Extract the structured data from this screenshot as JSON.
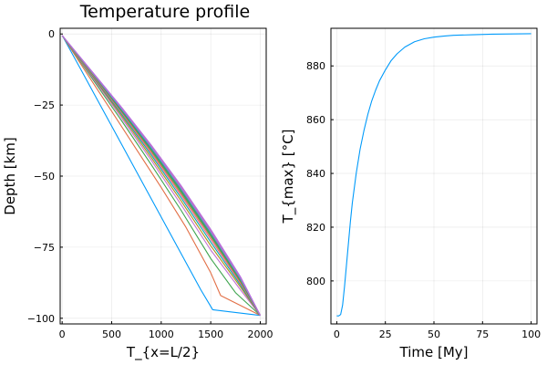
{
  "chart_data": [
    {
      "type": "line",
      "title": "Temperature profile",
      "xlabel": "T_{x=L/2}",
      "ylabel": "Depth [km]",
      "xlim": [
        -20,
        2060
      ],
      "ylim": [
        -102,
        2
      ],
      "xticks": [
        0,
        500,
        1000,
        1500,
        2000
      ],
      "xtick_labels": [
        "0",
        "500",
        "1000",
        "1500",
        "2000"
      ],
      "yticks": [
        0,
        -25,
        -50,
        -75,
        -100
      ],
      "ytick_labels": [
        "0",
        "−25",
        "−50",
        "−75",
        "−100"
      ],
      "grid": true,
      "legend": "none",
      "series": [
        {
          "color": "#009AFA",
          "x": [
            0,
            200,
            400,
            600,
            800,
            1000,
            1200,
            1400,
            1520,
            2000
          ],
          "y": [
            -0.5,
            -13.2,
            -26.0,
            -38.8,
            -51.6,
            -64.4,
            -77.2,
            -90.0,
            -97.0,
            -99.0
          ]
        },
        {
          "color": "#E26F46",
          "x": [
            0,
            250,
            500,
            750,
            1000,
            1250,
            1500,
            1600,
            2000
          ],
          "y": [
            -0.5,
            -13.9,
            -27.2,
            -40.6,
            -54.0,
            -68.0,
            -84.0,
            -92.0,
            -99.0
          ]
        },
        {
          "color": "#3EA44E",
          "x": [
            0,
            300,
            600,
            900,
            1200,
            1500,
            1750,
            2000
          ],
          "y": [
            -0.5,
            -15.5,
            -30.5,
            -46.0,
            -62.0,
            -79.0,
            -91.0,
            -99.0
          ]
        },
        {
          "color": "#C371D2",
          "x": [
            0,
            300,
            600,
            900,
            1200,
            1500,
            1800,
            2000
          ],
          "y": [
            -0.5,
            -15.0,
            -29.5,
            -44.5,
            -60.0,
            -76.0,
            -90.0,
            -99.0
          ]
        },
        {
          "color": "#AD8F19",
          "x": [
            0,
            300,
            600,
            900,
            1200,
            1500,
            1800,
            2000
          ],
          "y": [
            -0.5,
            -14.6,
            -28.8,
            -43.5,
            -58.7,
            -74.5,
            -89.0,
            -99.0
          ]
        },
        {
          "color": "#00AAAE",
          "x": [
            0,
            300,
            600,
            900,
            1200,
            1500,
            1800,
            2000
          ],
          "y": [
            -0.5,
            -14.3,
            -28.2,
            -42.6,
            -57.6,
            -73.2,
            -88.3,
            -99.0
          ]
        },
        {
          "color": "#ED5F92",
          "x": [
            0,
            300,
            600,
            900,
            1200,
            1500,
            1800,
            2000
          ],
          "y": [
            -0.5,
            -14.1,
            -27.7,
            -41.9,
            -56.7,
            -72.2,
            -87.7,
            -99.0
          ]
        },
        {
          "color": "#C68225",
          "x": [
            0,
            300,
            600,
            900,
            1200,
            1500,
            1800,
            2000
          ],
          "y": [
            -0.5,
            -13.9,
            -27.3,
            -41.3,
            -56.0,
            -71.4,
            -87.2,
            -99.0
          ]
        },
        {
          "color": "#00A98D",
          "x": [
            0,
            300,
            600,
            900,
            1200,
            1500,
            1800,
            2000
          ],
          "y": [
            -0.5,
            -13.7,
            -27.0,
            -40.8,
            -55.4,
            -70.8,
            -86.8,
            -99.0
          ]
        },
        {
          "color": "#8E971E",
          "x": [
            0,
            300,
            600,
            900,
            1200,
            1500,
            1800,
            2000
          ],
          "y": [
            -0.5,
            -13.6,
            -26.7,
            -40.4,
            -54.9,
            -70.3,
            -86.5,
            -99.0
          ]
        },
        {
          "color": "#00A9CD",
          "x": [
            0,
            300,
            600,
            900,
            1200,
            1500,
            1800,
            2000
          ],
          "y": [
            -0.5,
            -13.5,
            -26.5,
            -40.1,
            -54.5,
            -69.9,
            -86.2,
            -99.0
          ]
        },
        {
          "color": "#9B7FE9",
          "x": [
            0,
            300,
            600,
            900,
            1200,
            1500,
            1800,
            2000
          ],
          "y": [
            -0.5,
            -13.4,
            -26.3,
            -39.8,
            -54.2,
            -69.6,
            -86.0,
            -99.0
          ]
        },
        {
          "color": "#618DF6",
          "x": [
            0,
            300,
            600,
            900,
            1200,
            1500,
            1800,
            2000
          ],
          "y": [
            -0.5,
            -13.3,
            -26.2,
            -39.6,
            -53.9,
            -69.3,
            -85.8,
            -99.0
          ]
        },
        {
          "color": "#F16C8C",
          "x": [
            0,
            300,
            600,
            900,
            1200,
            1500,
            1800,
            2000
          ],
          "y": [
            -0.5,
            -13.2,
            -26.0,
            -39.4,
            -53.7,
            -69.1,
            -85.6,
            -99.0
          ]
        },
        {
          "color": "#DC6EA9",
          "x": [
            0,
            300,
            600,
            900,
            1200,
            1500,
            1800,
            2000
          ],
          "y": [
            -0.5,
            -13.2,
            -25.9,
            -39.3,
            -53.5,
            -68.9,
            -85.5,
            -99.0
          ]
        },
        {
          "color": "#B26EE4",
          "x": [
            0,
            300,
            600,
            900,
            1200,
            1500,
            1800,
            2000
          ],
          "y": [
            -0.5,
            -13.1,
            -25.8,
            -39.1,
            -53.3,
            -68.7,
            -85.4,
            -99.0
          ]
        }
      ]
    },
    {
      "type": "line",
      "title": "",
      "xlabel": "Time [My]",
      "ylabel": "T_{max} [°C]",
      "xlim": [
        -3,
        103
      ],
      "ylim": [
        784,
        894
      ],
      "xticks": [
        0,
        25,
        50,
        75,
        100
      ],
      "xtick_labels": [
        "0",
        "25",
        "50",
        "75",
        "100"
      ],
      "yticks": [
        800,
        820,
        840,
        860,
        880
      ],
      "ytick_labels": [
        "800",
        "820",
        "840",
        "860",
        "880"
      ],
      "grid": true,
      "legend": "none",
      "series": [
        {
          "color": "#009AFA",
          "x": [
            0,
            1,
            2,
            3,
            4,
            5,
            6,
            7,
            8,
            10,
            12,
            14,
            16,
            18,
            20,
            22,
            25,
            28,
            31,
            35,
            40,
            45,
            50,
            55,
            60,
            70,
            80,
            90,
            100
          ],
          "y": [
            787,
            787,
            787.5,
            791,
            798,
            806,
            814,
            822,
            829,
            840,
            849,
            856,
            862,
            867,
            871,
            874.5,
            878.5,
            882,
            884.5,
            887,
            889,
            890.1,
            890.7,
            891.1,
            891.4,
            891.6,
            891.8,
            891.9,
            892
          ]
        }
      ]
    }
  ]
}
